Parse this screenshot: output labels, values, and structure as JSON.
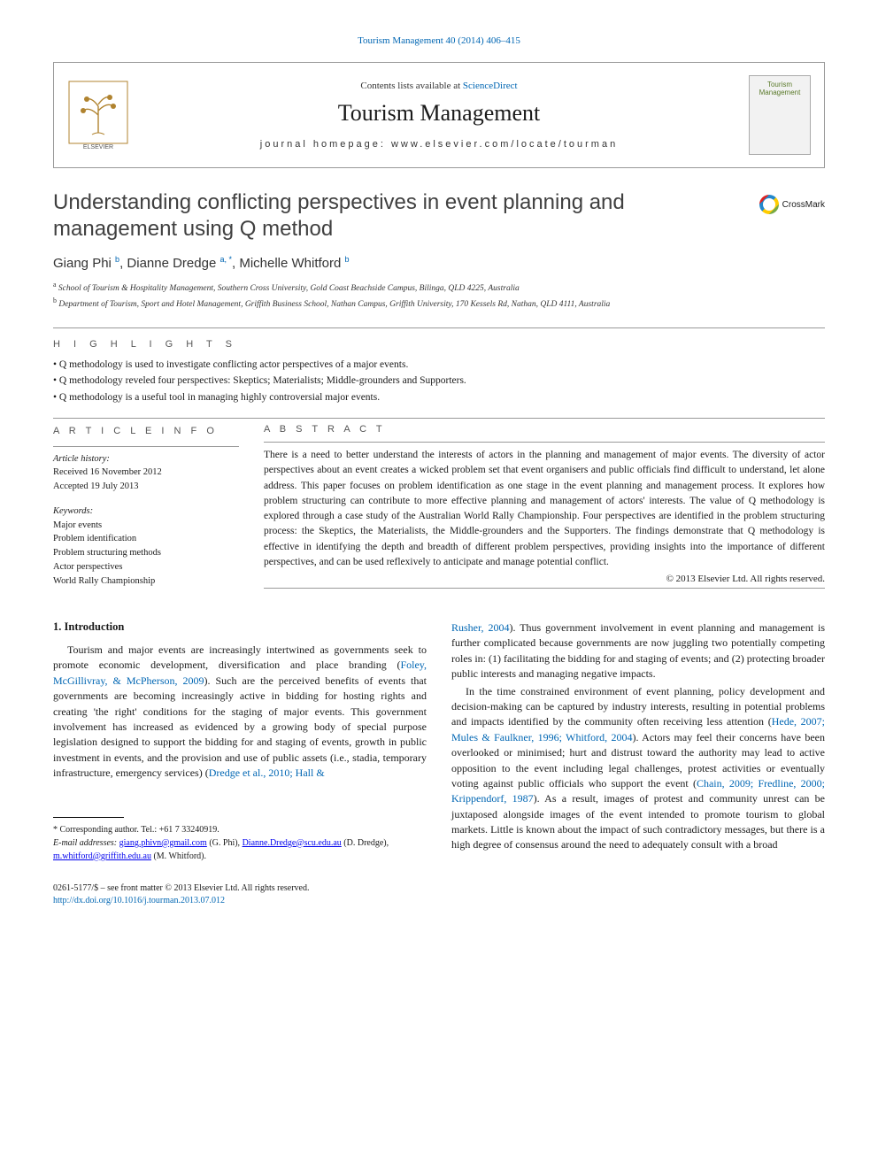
{
  "journal_ref_link": "Tourism Management 40 (2014) 406–415",
  "header": {
    "contents_prefix": "Contents lists available at ",
    "contents_link": "ScienceDirect",
    "journal_name": "Tourism Management",
    "homepage_prefix": "journal homepage: ",
    "homepage_url": "www.elsevier.com/locate/tourman",
    "cover_line1": "Tourism",
    "cover_line2": "Management"
  },
  "title": "Understanding conflicting perspectives in event planning and management using Q method",
  "crossmark": "CrossMark",
  "authors_html": "Giang Phi <sup>b</sup>, Dianne Dredge <sup>a, *</sup>, Michelle Whitford <sup>b</sup>",
  "affiliations": {
    "a": "School of Tourism & Hospitality Management, Southern Cross University, Gold Coast Beachside Campus, Bilinga, QLD 4225, Australia",
    "b": "Department of Tourism, Sport and Hotel Management, Griffith Business School, Nathan Campus, Griffith University, 170 Kessels Rd, Nathan, QLD 4111, Australia"
  },
  "highlights_head": "H I G H L I G H T S",
  "highlights": [
    "Q methodology is used to investigate conflicting actor perspectives of a major events.",
    "Q methodology reveled four perspectives: Skeptics; Materialists; Middle-grounders and Supporters.",
    "Q methodology is a useful tool in managing highly controversial major events."
  ],
  "article_info_head": "A R T I C L E   I N F O",
  "article_info": {
    "history_label": "Article history:",
    "received": "Received 16 November 2012",
    "accepted": "Accepted 19 July 2013",
    "keywords_label": "Keywords:",
    "keywords": [
      "Major events",
      "Problem identification",
      "Problem structuring methods",
      "Actor perspectives",
      "World Rally Championship"
    ]
  },
  "abstract_head": "A B S T R A C T",
  "abstract": "There is a need to better understand the interests of actors in the planning and management of major events. The diversity of actor perspectives about an event creates a wicked problem set that event organisers and public officials find difficult to understand, let alone address. This paper focuses on problem identification as one stage in the event planning and management process. It explores how problem structuring can contribute to more effective planning and management of actors' interests. The value of Q methodology is explored through a case study of the Australian World Rally Championship. Four perspectives are identified in the problem structuring process: the Skeptics, the Materialists, the Middle-grounders and the Supporters. The findings demonstrate that Q methodology is effective in identifying the depth and breadth of different problem perspectives, providing insights into the importance of different perspectives, and can be used reflexively to anticipate and manage potential conflict.",
  "copyright": "© 2013 Elsevier Ltd. All rights reserved.",
  "intro_heading": "1. Introduction",
  "body": {
    "left_p1_a": "Tourism and major events are increasingly intertwined as governments seek to promote economic development, diversification and place branding (",
    "left_p1_link1": "Foley, McGillivray, & McPherson, 2009",
    "left_p1_b": "). Such are the perceived benefits of events that governments are becoming increasingly active in bidding for hosting rights and creating 'the right' conditions for the staging of major events. This government involvement has increased as evidenced by a growing body of special purpose legislation designed to support the bidding for and staging of events, growth in public investment in events, and the provision and use of public assets (i.e., stadia, temporary infrastructure, emergency services) (",
    "left_p1_link2": "Dredge et al., 2010; Hall &",
    "right_p1_link1": "Rusher, 2004",
    "right_p1_a": "). Thus government involvement in event planning and management is further complicated because governments are now juggling two potentially competing roles in: (1) facilitating the bidding for and staging of events; and (2) protecting broader public interests and managing negative impacts.",
    "right_p2_a": "In the time constrained environment of event planning, policy development and decision-making can be captured by industry interests, resulting in potential problems and impacts identified by the community often receiving less attention (",
    "right_p2_link1": "Hede, 2007; Mules & Faulkner, 1996; Whitford, 2004",
    "right_p2_b": "). Actors may feel their concerns have been overlooked or minimised; hurt and distrust toward the authority may lead to active opposition to the event including legal challenges, protest activities or eventually voting against public officials who support the event (",
    "right_p2_link2": "Chain, 2009; Fredline, 2000; Krippendorf, 1987",
    "right_p2_c": "). As a result, images of protest and community unrest can be juxtaposed alongside images of the event intended to promote tourism to global markets. Little is known about the impact of such contradictory messages, but there is a high degree of consensus around the need to adequately consult with a broad"
  },
  "footnote": {
    "corr": "* Corresponding author. Tel.: +61 7 33240919.",
    "emails_label": "E-mail addresses: ",
    "e1": "giang.phivn@gmail.com",
    "n1": " (G. Phi), ",
    "e2": "Dianne.Dredge@scu.edu.au",
    "n2": " (D. Dredge), ",
    "e3": "m.whitford@griffith.edu.au",
    "n3": " (M. Whitford)."
  },
  "footer": {
    "line1": "0261-5177/$ – see front matter © 2013 Elsevier Ltd. All rights reserved.",
    "doi": "http://dx.doi.org/10.1016/j.tourman.2013.07.012"
  }
}
